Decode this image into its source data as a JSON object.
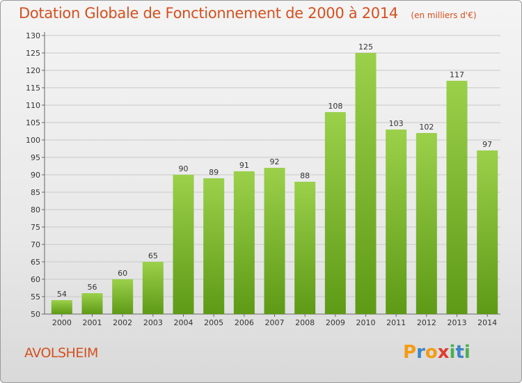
{
  "header": {
    "title": "Dotation Globale de Fonctionnement de 2000 à 2014",
    "subtitle": "(en milliers d'€)"
  },
  "footer": {
    "place": "AVOLSHEIM",
    "logo": "Proxiti"
  },
  "colors": {
    "title": "#d4501e",
    "bar_light": "#9bd04a",
    "bar_dark": "#5e9a16",
    "grid": "#c8c8c8"
  },
  "chart_data": {
    "type": "bar",
    "title": "Dotation Globale de Fonctionnement de 2000 à 2014",
    "subtitle": "(en milliers d'€)",
    "categories": [
      "2000",
      "2001",
      "2002",
      "2003",
      "2004",
      "2005",
      "2006",
      "2007",
      "2008",
      "2009",
      "2010",
      "2011",
      "2012",
      "2013",
      "2014"
    ],
    "values": [
      54,
      56,
      60,
      65,
      90,
      89,
      91,
      92,
      88,
      108,
      125,
      103,
      102,
      117,
      97
    ],
    "ylim": [
      50,
      130
    ],
    "yticks": [
      50,
      55,
      60,
      65,
      70,
      75,
      80,
      85,
      90,
      95,
      100,
      105,
      110,
      115,
      120,
      125,
      130
    ],
    "grid": true,
    "data_labels": true
  }
}
